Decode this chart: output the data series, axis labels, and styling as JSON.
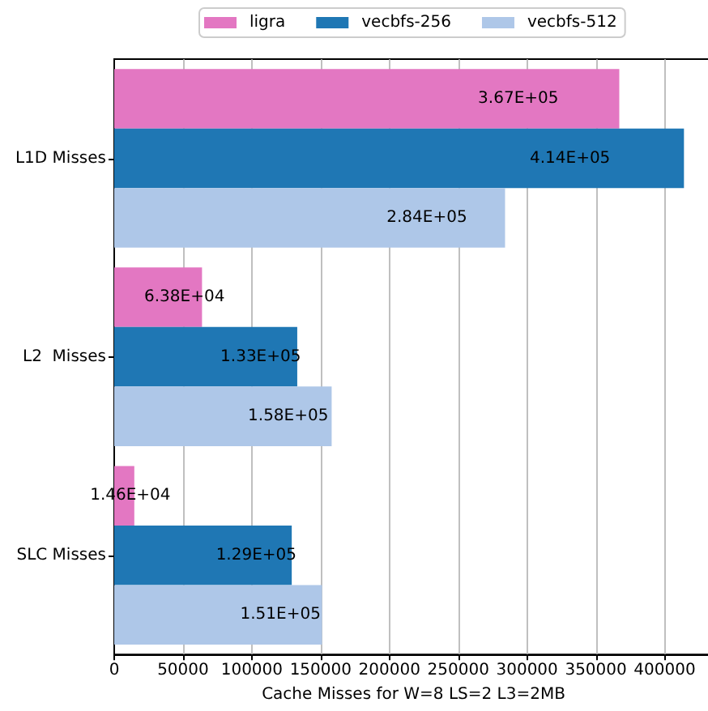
{
  "chart_data": {
    "type": "bar",
    "orientation": "horizontal",
    "xlabel": "Cache Misses for W=8 LS=2 L3=2MB",
    "categories": [
      "L1D Misses",
      "L2  Misses",
      "SLC Misses"
    ],
    "series": [
      {
        "name": "ligra",
        "color": "#e377c2",
        "values": [
          367000,
          63800,
          14600
        ],
        "value_labels": [
          "3.67E+05",
          "6.38E+04",
          "1.46E+04"
        ]
      },
      {
        "name": "vecbfs-256",
        "color": "#1f77b4",
        "values": [
          414000,
          133000,
          129000
        ],
        "value_labels": [
          "4.14E+05",
          "1.33E+05",
          "1.29E+05"
        ]
      },
      {
        "name": "vecbfs-512",
        "color": "#aec7e8",
        "values": [
          284000,
          158000,
          151000
        ],
        "value_labels": [
          "2.84E+05",
          "1.58E+05",
          "1.51E+05"
        ]
      }
    ],
    "xlim": [
      0,
      435000
    ],
    "xticks": [
      0,
      50000,
      100000,
      150000,
      200000,
      250000,
      300000,
      350000,
      400000
    ],
    "grid": "x",
    "legend": "top"
  }
}
